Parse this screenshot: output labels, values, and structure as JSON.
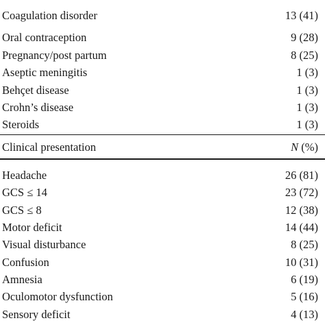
{
  "risk_factors": [
    {
      "label": "Coagulation disorder",
      "value": "13 (41)"
    },
    {
      "label": "Oral contraception",
      "value": "9 (28)"
    },
    {
      "label": "Pregnancy/post partum",
      "value": "8 (25)"
    },
    {
      "label": "Aseptic meningitis",
      "value": "1 (3)"
    },
    {
      "label": "Behçet disease",
      "value": "1 (3)"
    },
    {
      "label": "Crohn’s disease",
      "value": "1 (3)"
    },
    {
      "label": "Steroids",
      "value": "1 (3)"
    }
  ],
  "presentation_header": {
    "label": "Clinical presentation",
    "value_n": "N",
    "value_pct": " (%)"
  },
  "presentation": [
    {
      "label": "Headache",
      "value": "26 (81)"
    },
    {
      "label": "GCS ≤ 14",
      "value": "23 (72)"
    },
    {
      "label": "GCS ≤ 8",
      "value": "12 (38)"
    },
    {
      "label": "Motor deficit",
      "value": "14 (44)"
    },
    {
      "label": "Visual disturbance",
      "value": "8 (25)"
    },
    {
      "label": "Confusion",
      "value": "10 (31)"
    },
    {
      "label": "Amnesia",
      "value": "6 (19)"
    },
    {
      "label": "Oculomotor dysfunction",
      "value": "5 (16)"
    },
    {
      "label": "Sensory deficit",
      "value": "4 (13)"
    }
  ]
}
